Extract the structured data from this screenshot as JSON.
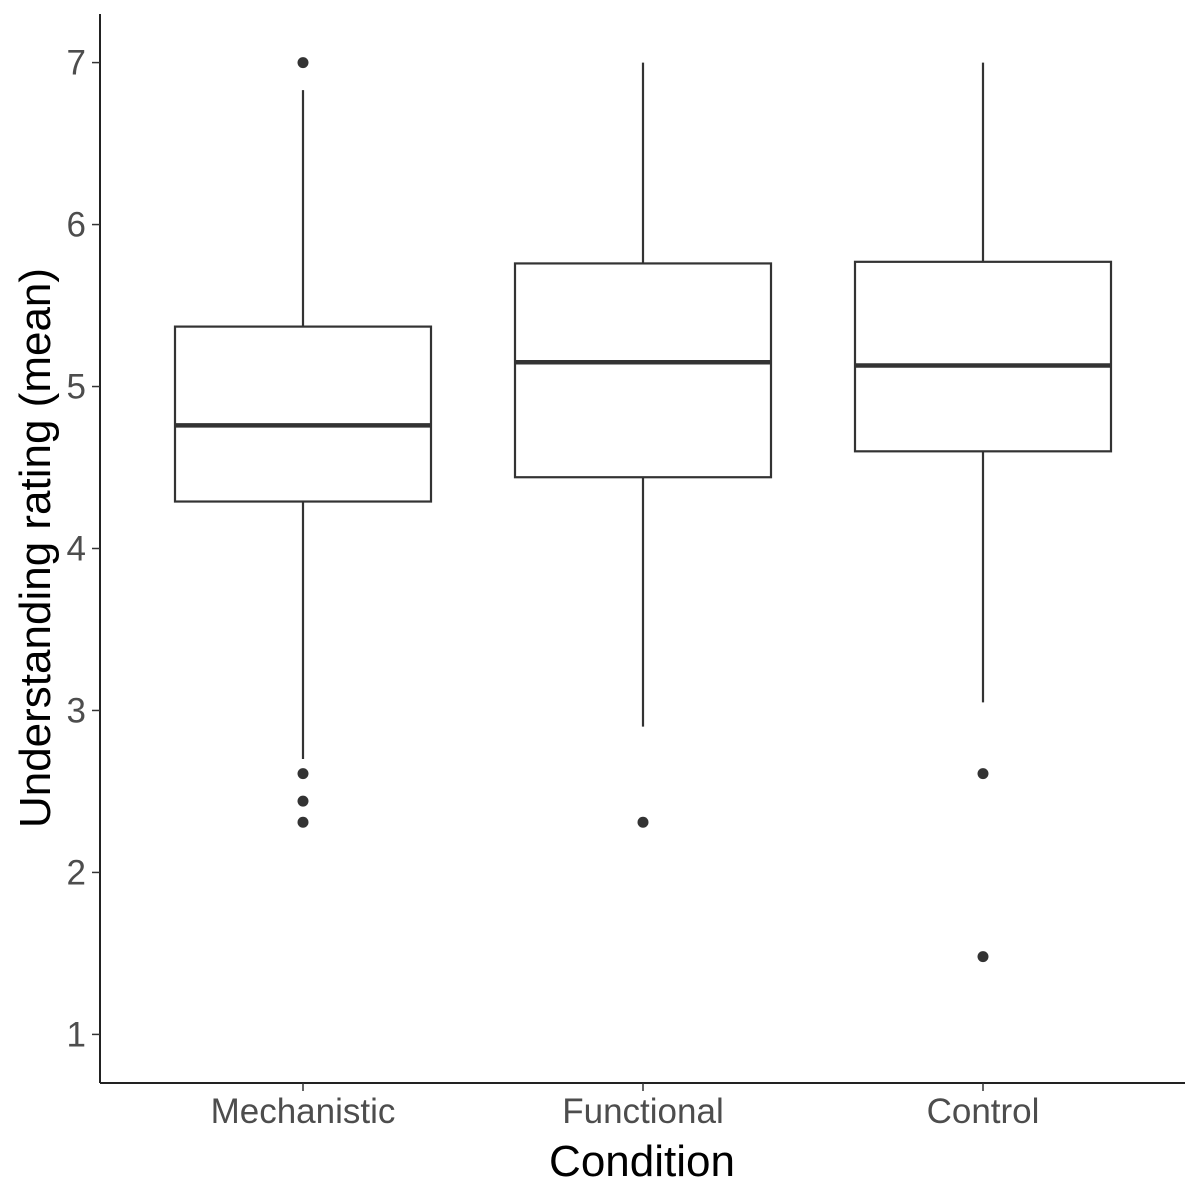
{
  "chart_data": {
    "type": "boxplot",
    "xlabel": "Condition",
    "ylabel": "Understanding rating (mean)",
    "ylim": [
      0.7,
      7.3
    ],
    "yticks": [
      1,
      2,
      3,
      4,
      5,
      6,
      7
    ],
    "grid": false,
    "legend": "none",
    "categories": [
      "Mechanistic",
      "Functional",
      "Control"
    ],
    "boxes": [
      {
        "category": "Mechanistic",
        "whisker_low": 2.7,
        "q1": 4.29,
        "median": 4.76,
        "q3": 5.37,
        "whisker_high": 6.83,
        "outliers": [
          7.0,
          2.61,
          2.44,
          2.31
        ]
      },
      {
        "category": "Functional",
        "whisker_low": 2.9,
        "q1": 4.44,
        "median": 5.15,
        "q3": 5.76,
        "whisker_high": 7.0,
        "outliers": [
          2.31
        ]
      },
      {
        "category": "Control",
        "whisker_low": 3.05,
        "q1": 4.6,
        "median": 5.13,
        "q3": 5.77,
        "whisker_high": 7.0,
        "outliers": [
          2.61,
          1.48
        ]
      }
    ],
    "colors": {
      "box_fill": "#ffffff",
      "box_stroke": "#333333",
      "outlier": "#333333",
      "axis": "#222222",
      "tick_label": "#4d4d4d"
    }
  }
}
